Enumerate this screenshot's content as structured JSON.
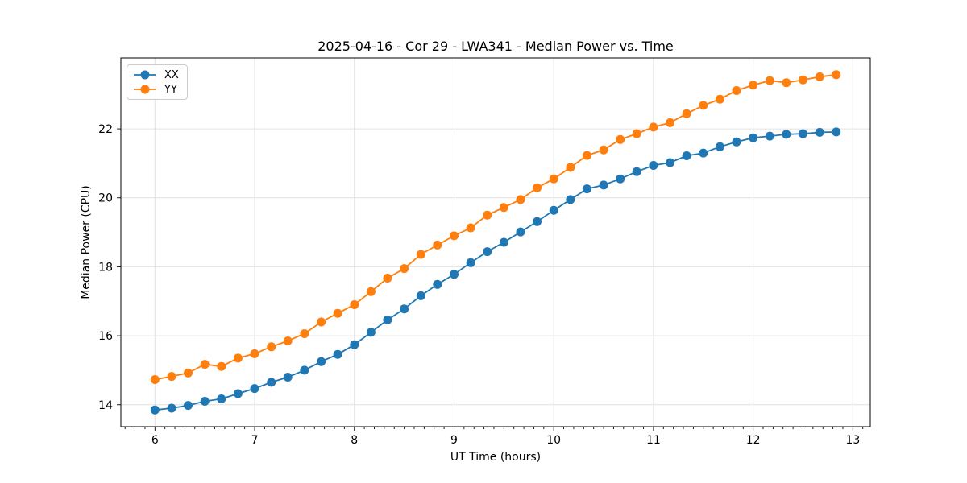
{
  "figure": {
    "background": "#ffffff"
  },
  "chart_data": {
    "type": "line",
    "title": "2025-04-16 - Cor 29 - LWA341 - Median Power vs. Time",
    "xlabel": "UT Time (hours)",
    "ylabel": "Median Power (CPU)",
    "xlim": [
      5.658,
      13.175
    ],
    "ylim": [
      13.364,
      24.056
    ],
    "x_ticks": [
      6,
      7,
      8,
      9,
      10,
      11,
      12,
      13
    ],
    "y_ticks": [
      14,
      16,
      18,
      20,
      22
    ],
    "x_minor_tick_step": 0.1,
    "grid": true,
    "grid_color": "#e0e0e0",
    "axis_color": "#000000",
    "legend_position": "upper-left",
    "x": [
      6.0,
      6.167,
      6.333,
      6.5,
      6.667,
      6.833,
      7.0,
      7.167,
      7.333,
      7.5,
      7.667,
      7.833,
      8.0,
      8.167,
      8.333,
      8.5,
      8.667,
      8.833,
      9.0,
      9.167,
      9.333,
      9.5,
      9.667,
      9.833,
      10.0,
      10.167,
      10.333,
      10.5,
      10.667,
      10.833,
      11.0,
      11.167,
      11.333,
      11.5,
      11.667,
      11.833,
      12.0,
      12.167,
      12.333,
      12.5,
      12.667,
      12.833
    ],
    "series": [
      {
        "name": "XX",
        "color": "#1f77b4",
        "marker": "circle",
        "values": [
          13.85,
          13.9,
          13.98,
          14.1,
          14.17,
          14.32,
          14.47,
          14.65,
          14.8,
          15.0,
          15.25,
          15.46,
          15.74,
          16.1,
          16.46,
          16.78,
          17.16,
          17.49,
          17.78,
          18.12,
          18.44,
          18.71,
          19.01,
          19.31,
          19.64,
          19.95,
          20.26,
          20.37,
          20.55,
          20.76,
          20.94,
          21.02,
          21.22,
          21.3,
          21.48,
          21.62,
          21.74,
          21.79,
          21.84,
          21.86,
          21.9,
          21.91
        ]
      },
      {
        "name": "YY",
        "color": "#ff7f0e",
        "marker": "circle",
        "values": [
          14.73,
          14.82,
          14.92,
          15.17,
          15.11,
          15.35,
          15.48,
          15.68,
          15.85,
          16.06,
          16.4,
          16.65,
          16.9,
          17.28,
          17.67,
          17.95,
          18.36,
          18.63,
          18.9,
          19.13,
          19.5,
          19.72,
          19.95,
          20.29,
          20.55,
          20.88,
          21.23,
          21.39,
          21.69,
          21.86,
          22.05,
          22.18,
          22.44,
          22.68,
          22.86,
          23.11,
          23.27,
          23.4,
          23.34,
          23.42,
          23.51,
          23.57
        ]
      }
    ]
  }
}
